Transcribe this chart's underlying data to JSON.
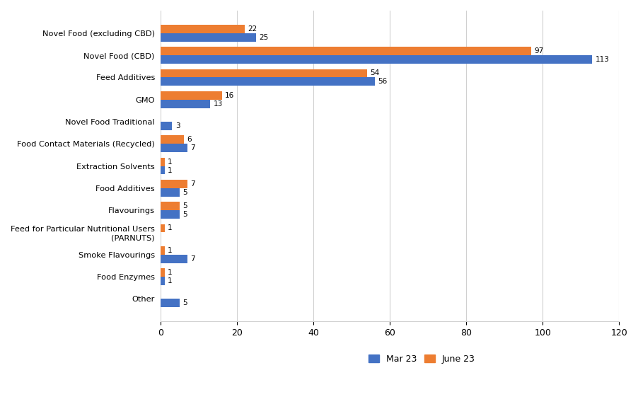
{
  "categories": [
    "Novel Food (excluding CBD)",
    "Novel Food (CBD)",
    "Feed Additives",
    "GMO",
    "Novel Food Traditional",
    "Food Contact Materials (Recycled)",
    "Extraction Solvents",
    "Food Additives",
    "Flavourings",
    "Feed for Particular Nutritional Users\n(PARNUTS)",
    "Smoke Flavourings",
    "Food Enzymes",
    "Other"
  ],
  "mar23": [
    25,
    113,
    56,
    13,
    3,
    7,
    1,
    5,
    5,
    0,
    7,
    1,
    5
  ],
  "june23": [
    22,
    97,
    54,
    16,
    0,
    6,
    1,
    7,
    5,
    1,
    1,
    1,
    0
  ],
  "color_mar": "#4472C4",
  "color_june": "#ED7D31",
  "xlim": [
    0,
    120
  ],
  "xticks": [
    0,
    20,
    40,
    60,
    80,
    100,
    120
  ],
  "legend_mar": "Mar 23",
  "legend_june": "June 23",
  "background_color": "#ffffff",
  "grid_color": "#d0d0d0"
}
